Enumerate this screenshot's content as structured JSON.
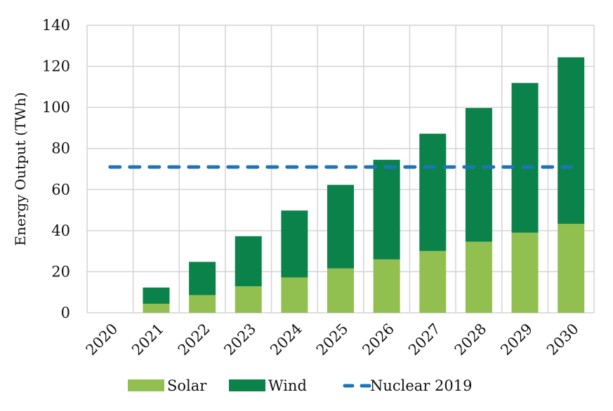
{
  "chart_data": {
    "type": "bar",
    "stacked": true,
    "title": "",
    "xlabel": "",
    "ylabel": "Energy Output (TWh)",
    "ylim": [
      0,
      140
    ],
    "yticks": [
      0,
      20,
      40,
      60,
      80,
      100,
      120,
      140
    ],
    "categories": [
      "2020",
      "2021",
      "2022",
      "2023",
      "2024",
      "2025",
      "2026",
      "2027",
      "2028",
      "2029",
      "2030"
    ],
    "series": [
      {
        "name": "Solar",
        "color": "#92C050",
        "values": [
          0,
          4.4,
          8.6,
          12.9,
          17.2,
          21.6,
          26.0,
          30.1,
          34.6,
          39.0,
          43.3
        ]
      },
      {
        "name": "Wind",
        "color": "#0B8249",
        "values": [
          0,
          7.9,
          16.2,
          24.4,
          32.6,
          40.7,
          48.5,
          57.1,
          65.1,
          72.9,
          81.1
        ]
      }
    ],
    "reference_line": {
      "name": "Nuclear 2019",
      "value": 71,
      "color": "#1C75BC",
      "style": "dashed",
      "from": "2020",
      "to": "2030"
    },
    "grid": true,
    "legend": {
      "position": "bottom",
      "entries": [
        "Solar",
        "Wind",
        "Nuclear 2019"
      ]
    }
  }
}
